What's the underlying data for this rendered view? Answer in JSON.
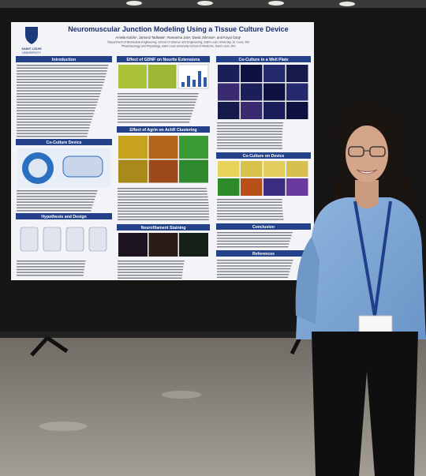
{
  "poster": {
    "logo": [
      "SAINT LOUIS",
      "UNIVERSITY"
    ],
    "title": "Neuromuscular Junction Modeling Using a Tissue Culture Device",
    "authors": "Amelia Kalofu¹, Jamond Tadiwala¹, Roseanna Jain¹, David Johnson², and Koyal Garg¹",
    "affiliations": [
      "¹Department of Biomedical Engineering, School of Science and Engineering, Saint Louis University, St. Louis, MO",
      "²Pharmacology and Physiology, Saint Louis University School of Medicine, Saint Louis, MO"
    ],
    "sections": [
      "Introduction",
      "Co-Culture Device",
      "Hypothesis and Design",
      "Effect of GDNF on Neurite Extensions",
      "Effect of Agrin on AchR Clustering",
      "Neurofilament Staining",
      "Co-Culture in a Well Plate",
      "Co-Culture on Device",
      "Conclusion",
      "References"
    ]
  }
}
